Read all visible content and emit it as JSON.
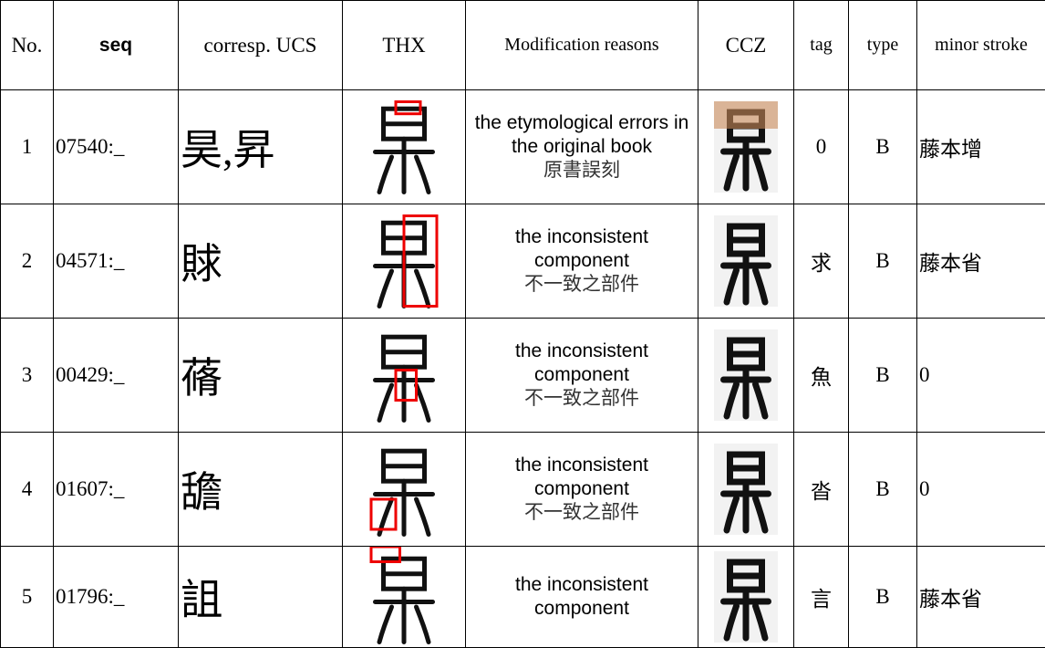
{
  "table": {
    "header": [
      "No.",
      "seq",
      "corresp. UCS",
      "THX",
      "Modification reasons",
      "CCZ",
      "tag",
      "type",
      "minor stroke"
    ],
    "rows": [
      {
        "no": "1",
        "seq": "07540:_",
        "ucs": "昊,昇",
        "reason_en": "the etymological errors in the original book",
        "reason_zh": "原書誤刻",
        "tag": "0",
        "type": "B",
        "minor": "藤本增"
      },
      {
        "no": "2",
        "seq": "04571:_",
        "ucs": "賕",
        "reason_en": "the inconsistent component",
        "reason_zh": "不一致之部件",
        "tag": "求",
        "type": "B",
        "minor": "藤本省"
      },
      {
        "no": "3",
        "seq": "00429:_",
        "ucs": "蓨",
        "reason_en": "the inconsistent component",
        "reason_zh": "不一致之部件",
        "tag": "魚",
        "type": "B",
        "minor": "0"
      },
      {
        "no": "4",
        "seq": "01607:_",
        "ucs": "舚",
        "reason_en": "the inconsistent component",
        "reason_zh": "不一致之部件",
        "tag": "沓",
        "type": "B",
        "minor": "0"
      },
      {
        "no": "5",
        "seq": "01796:_",
        "ucs": "詛",
        "reason_en": "the inconsistent component",
        "reason_zh": null,
        "tag": "言",
        "type": "B",
        "minor": "藤本省"
      }
    ]
  }
}
